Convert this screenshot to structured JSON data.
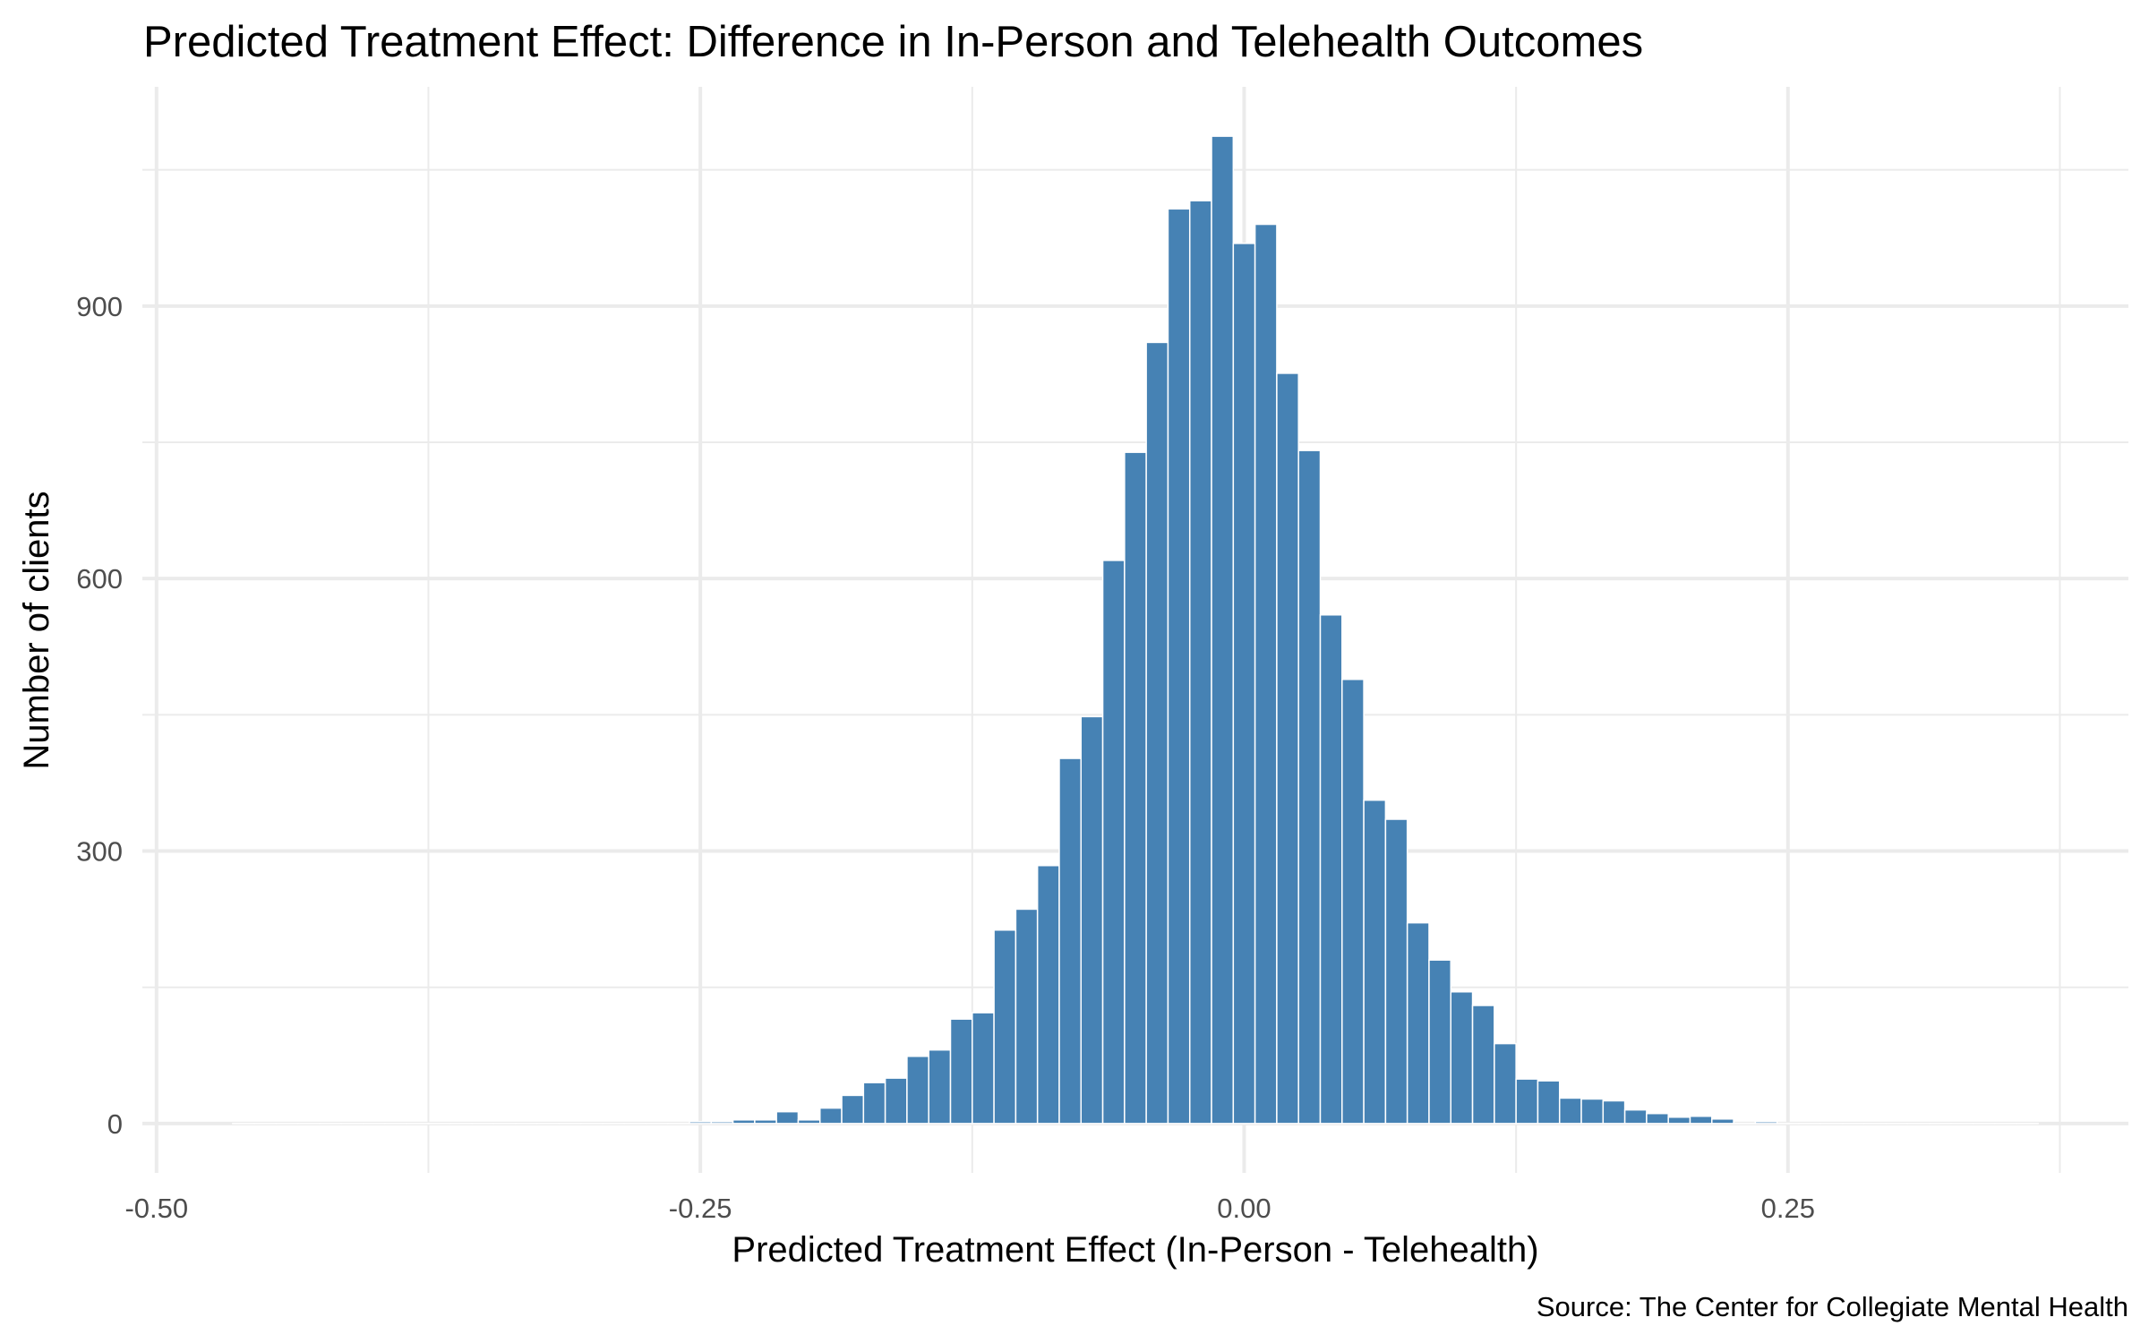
{
  "chart_data": {
    "type": "bar",
    "subtype": "histogram",
    "title": "Predicted Treatment Effect: Difference in In-Person and Telehealth Outcomes",
    "xlabel": "Predicted Treatment Effect (In-Person - Telehealth)",
    "ylabel": "Number of clients",
    "caption": "Source: The Center for Collegiate Mental Health",
    "bin_width": 0.01,
    "bar_color": "#4682b4",
    "bar_outline_color": "#ffffff",
    "grid": true,
    "legend": "none",
    "xlim": [
      -0.5065,
      0.4065
    ],
    "ylim": [
      -54.35,
      1141.35
    ],
    "x_ticks": [
      -0.5,
      -0.25,
      0.0,
      0.25
    ],
    "x_tick_labels": [
      "-0.50",
      "-0.25",
      "0.00",
      "0.25"
    ],
    "x_minor_ticks": [
      -0.375,
      -0.125,
      0.125,
      0.375
    ],
    "y_ticks": [
      0,
      300,
      600,
      900
    ],
    "y_tick_labels": [
      "0",
      "300",
      "600",
      "900"
    ],
    "y_minor_ticks": [
      150,
      450,
      750,
      1050
    ],
    "bin_centers": [
      -0.46,
      -0.45,
      -0.44,
      -0.43,
      -0.42,
      -0.41,
      -0.4,
      -0.39,
      -0.38,
      -0.37,
      -0.36,
      -0.35,
      -0.34,
      -0.33,
      -0.32,
      -0.31,
      -0.3,
      -0.29,
      -0.28,
      -0.27,
      -0.26,
      -0.25,
      -0.24,
      -0.23,
      -0.22,
      -0.21,
      -0.2,
      -0.19,
      -0.18,
      -0.17,
      -0.16,
      -0.15,
      -0.14,
      -0.13,
      -0.12,
      -0.11,
      -0.1,
      -0.09,
      -0.08,
      -0.07,
      -0.06,
      -0.05,
      -0.04,
      -0.03,
      -0.02,
      -0.01,
      0.0,
      0.01,
      0.02,
      0.03,
      0.04,
      0.05,
      0.06,
      0.07,
      0.08,
      0.09,
      0.1,
      0.11,
      0.12,
      0.13,
      0.14,
      0.15,
      0.16,
      0.17,
      0.18,
      0.19,
      0.2,
      0.21,
      0.22,
      0.23,
      0.24,
      0.25,
      0.26,
      0.27,
      0.28,
      0.29,
      0.3,
      0.31,
      0.32,
      0.33,
      0.34,
      0.35,
      0.36
    ],
    "values": [
      0,
      0,
      0,
      0,
      0,
      0,
      0,
      0,
      0,
      0,
      0,
      0,
      0,
      0,
      0,
      0,
      0,
      0,
      0,
      0,
      0,
      2,
      2,
      4,
      4,
      13,
      4,
      17,
      31,
      45,
      50,
      74,
      81,
      115,
      122,
      213,
      236,
      284,
      402,
      448,
      620,
      739,
      860,
      1007,
      1016,
      1087,
      969,
      990,
      826,
      741,
      560,
      489,
      356,
      335,
      221,
      180,
      145,
      130,
      88,
      49,
      47,
      28,
      27,
      25,
      15,
      11,
      7,
      8,
      5,
      0,
      2,
      0,
      0,
      0,
      0,
      0,
      0,
      0,
      0,
      0,
      0,
      0,
      0
    ]
  }
}
